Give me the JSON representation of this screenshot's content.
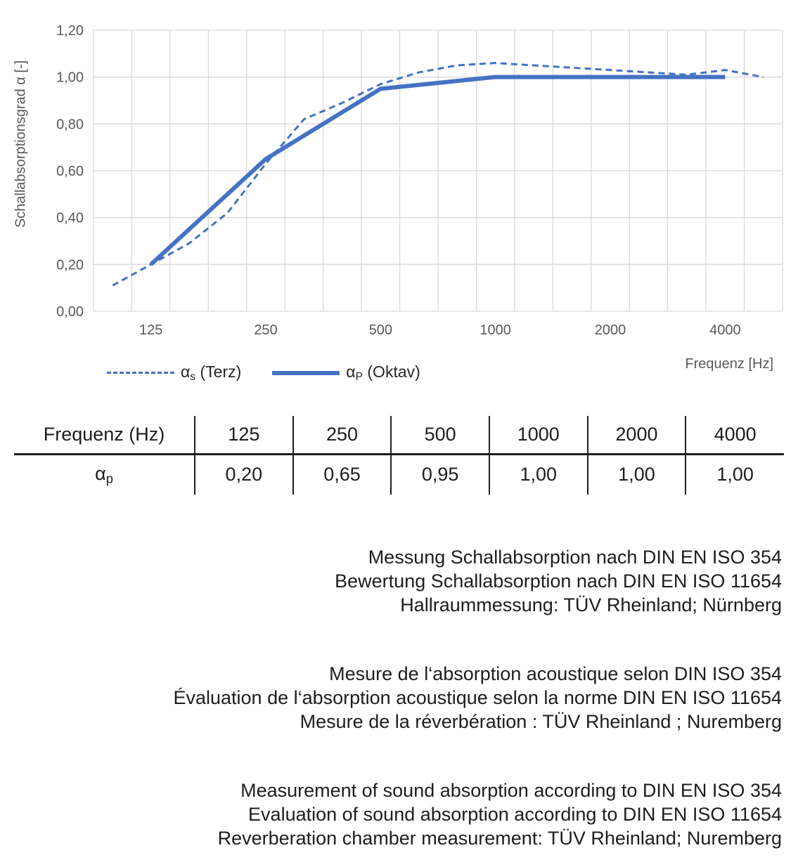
{
  "chart": {
    "y_axis_title": "Schallabsorptionsgrad α [-]",
    "x_axis_title": "Frequenz [Hz]",
    "y_ticks": [
      "1,20",
      "1,00",
      "0,80",
      "0,60",
      "0,40",
      "0,20",
      "0,00"
    ],
    "legend": [
      {
        "symbol": "α",
        "subscript": "s",
        "suffix": " (Terz)"
      },
      {
        "symbol": "α",
        "subscript": "P",
        "suffix": " (Oktav)"
      }
    ]
  },
  "chart_data": {
    "type": "line",
    "title": "",
    "xlabel": "Frequenz [Hz]",
    "ylabel": "Schallabsorptionsgrad α [-]",
    "x_scale": "third-octave bands, logarithmic category axis",
    "ylim": [
      0,
      1.2
    ],
    "y_tick_step": 0.2,
    "grid": true,
    "legend_position": "bottom-left",
    "categories": [
      100,
      125,
      160,
      200,
      250,
      315,
      400,
      500,
      630,
      800,
      1000,
      1250,
      1600,
      2000,
      2500,
      3150,
      4000,
      5000
    ],
    "x_tick_labels": [
      "125",
      "250",
      "500",
      "1000",
      "2000",
      "4000"
    ],
    "series": [
      {
        "name": "αs (Terz)",
        "style": "dashed",
        "color": "#4472C4",
        "x": [
          100,
          125,
          160,
          200,
          250,
          315,
          400,
          500,
          630,
          800,
          1000,
          1250,
          1600,
          2000,
          2500,
          3150,
          4000,
          5000
        ],
        "values": [
          0.11,
          0.2,
          0.29,
          0.42,
          0.63,
          0.82,
          0.89,
          0.97,
          1.02,
          1.05,
          1.06,
          1.05,
          1.04,
          1.03,
          1.02,
          1.01,
          1.03,
          1.0
        ]
      },
      {
        "name": "αP (Oktav)",
        "style": "solid",
        "color": "#4472C4",
        "x": [
          125,
          250,
          500,
          1000,
          2000,
          4000
        ],
        "values": [
          0.2,
          0.65,
          0.95,
          1.0,
          1.0,
          1.0
        ]
      }
    ],
    "colors": {
      "line_blue": "#4472C4",
      "grid": "#D9D9D9",
      "axis_text": "#595959"
    }
  },
  "table": {
    "header_label": "Frequenz (Hz)",
    "header_values": [
      "125",
      "250",
      "500",
      "1000",
      "2000",
      "4000"
    ],
    "row_symbol": "α",
    "row_subscript": "p",
    "row_values": [
      "0,20",
      "0,65",
      "0,95",
      "1,00",
      "1,00",
      "1,00"
    ]
  },
  "notes": {
    "german": [
      "Messung Schallabsorption nach DIN EN ISO 354",
      "Bewertung Schallabsorption nach DIN EN ISO 11654",
      "Hallraummessung: TÜV Rheinland; Nürnberg"
    ],
    "french": [
      "Mesure de l‘absorption acoustique selon DIN ISO 354",
      "Évaluation de l‘absorption acoustique selon la norme DIN EN ISO 11654",
      "Mesure de la réverbération : TÜV Rheinland ; Nuremberg"
    ],
    "english": [
      "Measurement of sound absorption according to DIN EN ISO 354",
      "Evaluation of sound absorption according to DIN EN ISO 11654",
      "Reverberation chamber measurement: TÜV Rheinland; Nuremberg"
    ]
  }
}
